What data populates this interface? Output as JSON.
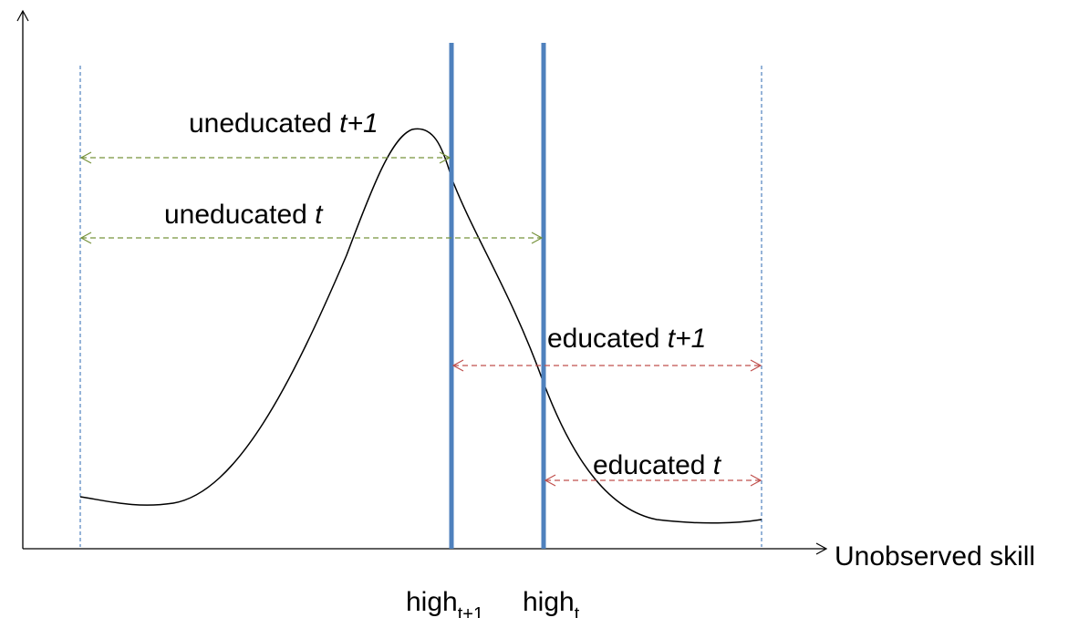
{
  "labels": [
    {
      "text": "uneducated",
      "period": "t+1"
    },
    {
      "text": "uneducated",
      "period": "t"
    },
    {
      "text": "educated",
      "period": "t+1"
    },
    {
      "text": "educated",
      "period": "t"
    }
  ],
  "x_axis_label": "Unobserved skill",
  "thresholds": [
    {
      "text": "high",
      "subscript": "t+1"
    },
    {
      "text": "high",
      "subscript": "t"
    }
  ]
}
